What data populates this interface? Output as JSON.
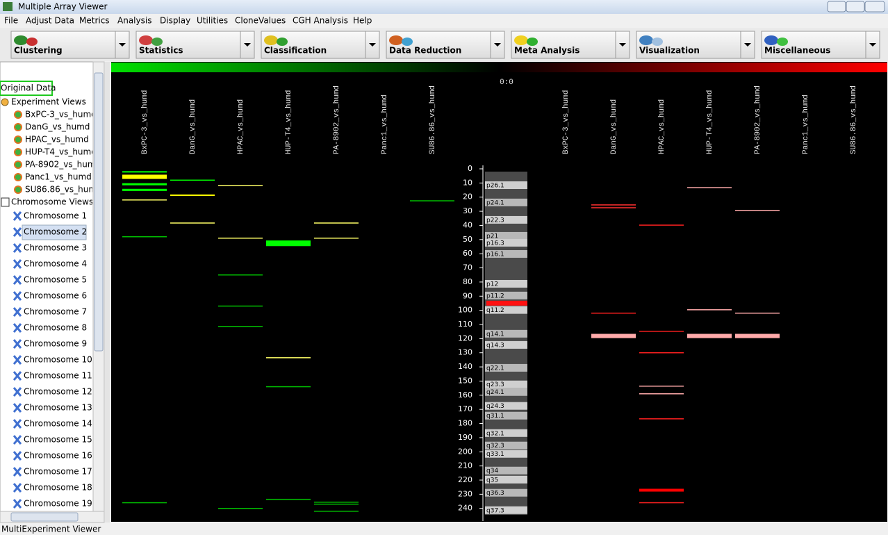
{
  "window": {
    "title": "Multiple Array Viewer",
    "status": "MultiExperiment Viewer"
  },
  "menu": [
    "File",
    "Adjust Data",
    "Metrics",
    "Analysis",
    "Display",
    "Utilities",
    "CloneValues",
    "CGH Analysis",
    "Help"
  ],
  "toolbar": [
    "Clustering",
    "Statistics",
    "Classification",
    "Data Reduction",
    "Meta Analysis",
    "Visualization",
    "Miscellaneous"
  ],
  "tree": {
    "root": "Original Data",
    "experiment_views": "Experiment Views",
    "chromosome_views": "Chromosome Views",
    "chromosomes": [
      "Chromosome 1",
      "Chromosome 2",
      "Chromosome 3",
      "Chromosome 4",
      "Chromosome 5",
      "Chromosome 6",
      "Chromosome 7",
      "Chromosome 8",
      "Chromosome 9",
      "Chromosome 10",
      "Chromosome 11",
      "Chromosome 12",
      "Chromosome 13",
      "Chromosome 14",
      "Chromosome 15",
      "Chromosome 16",
      "Chromosome 17",
      "Chromosome 18",
      "Chromosome 19"
    ],
    "selected": 1
  },
  "viewer": {
    "scale_label": "0:0",
    "columns": [
      "BxPC-3_vs_humd",
      "DanG_vs_humd",
      "HPAC_vs_humd",
      "HUP-T4_vs_humd",
      "PA-8902_vs_humd",
      "Panc1_vs_humd",
      "SU86.86_vs_humd"
    ],
    "ylim": [
      0,
      248
    ],
    "yticks": [
      0,
      10,
      20,
      30,
      40,
      50,
      60,
      70,
      80,
      90,
      100,
      110,
      120,
      130,
      140,
      150,
      160,
      170,
      180,
      190,
      200,
      210,
      220,
      230,
      240
    ],
    "left_tracks": [
      [
        {
          "start": 2,
          "end": 3,
          "color": "#00ff00"
        },
        {
          "start": 4.5,
          "end": 7.5,
          "color": "#ffff00"
        },
        {
          "start": 10.5,
          "end": 12,
          "color": "#00ff00"
        },
        {
          "start": 14.5,
          "end": 16,
          "color": "#00ff00"
        },
        {
          "start": 22,
          "end": 22,
          "color": "#ffff66"
        },
        {
          "start": 48,
          "end": 48,
          "color": "#00c000"
        },
        {
          "start": 236,
          "end": 236,
          "color": "#00c000"
        }
      ],
      [
        {
          "start": 8,
          "end": 8.5,
          "color": "#00ff00"
        },
        {
          "start": 18.5,
          "end": 19.5,
          "color": "#ffff00"
        },
        {
          "start": 38.3,
          "end": 38.3,
          "color": "#ffff66"
        }
      ],
      [
        {
          "start": 11.8,
          "end": 11.8,
          "color": "#ffff66"
        },
        {
          "start": 49,
          "end": 49,
          "color": "#ffff66"
        },
        {
          "start": 75,
          "end": 75,
          "color": "#00c000"
        },
        {
          "start": 97,
          "end": 97,
          "color": "#00c000"
        },
        {
          "start": 111.4,
          "end": 111.4,
          "color": "#00c000"
        },
        {
          "start": 240,
          "end": 240,
          "color": "#00c000"
        }
      ],
      [
        {
          "start": 51,
          "end": 55,
          "color": "#00ff00"
        },
        {
          "start": 133.5,
          "end": 133.5,
          "color": "#ffff66"
        },
        {
          "start": 154,
          "end": 154,
          "color": "#00c000"
        },
        {
          "start": 233.6,
          "end": 233.6,
          "color": "#00c000"
        }
      ],
      [
        {
          "start": 38.3,
          "end": 38.3,
          "color": "#ffff66"
        },
        {
          "start": 49,
          "end": 49,
          "color": "#ffff66"
        },
        {
          "start": 235.6,
          "end": 235.6,
          "color": "#00c000"
        },
        {
          "start": 237,
          "end": 237,
          "color": "#00c000"
        },
        {
          "start": 242,
          "end": 242,
          "color": "#00c000"
        }
      ],
      [],
      [
        {
          "start": 22.6,
          "end": 22.6,
          "color": "#00c000"
        }
      ]
    ],
    "right_tracks": [
      [],
      [
        {
          "start": 25.5,
          "end": 25.5,
          "color": "#ff3030"
        },
        {
          "start": 27.5,
          "end": 27.5,
          "color": "#ff3030"
        },
        {
          "start": 102,
          "end": 102.5,
          "color": "#ff2020"
        },
        {
          "start": 117,
          "end": 120,
          "color": "#ffaaaa"
        }
      ],
      [
        {
          "start": 39.8,
          "end": 39.8,
          "color": "#ff2020"
        },
        {
          "start": 114.8,
          "end": 114.8,
          "color": "#ff2020"
        },
        {
          "start": 130,
          "end": 130,
          "color": "#ff2020"
        },
        {
          "start": 153.6,
          "end": 153.6,
          "color": "#ffaaaa"
        },
        {
          "start": 159,
          "end": 159,
          "color": "#ffaaaa"
        },
        {
          "start": 176.7,
          "end": 176.7,
          "color": "#ff2020"
        },
        {
          "start": 226.5,
          "end": 228.5,
          "color": "#ff0000"
        },
        {
          "start": 236,
          "end": 236,
          "color": "#ff2020"
        }
      ],
      [
        {
          "start": 13.3,
          "end": 13.3,
          "color": "#ffaaaa"
        },
        {
          "start": 99.6,
          "end": 99.6,
          "color": "#ffaaaa"
        },
        {
          "start": 117,
          "end": 120,
          "color": "#ffaaaa"
        }
      ],
      [
        {
          "start": 29.4,
          "end": 29.4,
          "color": "#ffaaaa"
        },
        {
          "start": 102,
          "end": 102,
          "color": "#ffaaaa"
        },
        {
          "start": 117,
          "end": 120,
          "color": "#ffaaaa"
        }
      ],
      [],
      []
    ],
    "ideogram": {
      "centromere": 94.7,
      "bands": [
        {
          "label": "p26.1",
          "pos": 11.8
        },
        {
          "label": "p24.1",
          "pos": 24
        },
        {
          "label": "p22.3",
          "pos": 36.3
        },
        {
          "label": "p21",
          "pos": 47.6
        },
        {
          "label": "p16.3",
          "pos": 52.5
        },
        {
          "label": "p16.1",
          "pos": 60.4
        },
        {
          "label": "p12",
          "pos": 81.5
        },
        {
          "label": "p11.2",
          "pos": 89.8
        },
        {
          "label": "q11.2",
          "pos": 100
        },
        {
          "label": "q14.1",
          "pos": 116.8
        },
        {
          "label": "q14.3",
          "pos": 124.7
        },
        {
          "label": "q22.1",
          "pos": 140.9
        },
        {
          "label": "q23.3",
          "pos": 152.6
        },
        {
          "label": "q24.1",
          "pos": 158
        },
        {
          "label": "q24.3",
          "pos": 167.8
        },
        {
          "label": "q31.1",
          "pos": 174.7
        },
        {
          "label": "q32.1",
          "pos": 187
        },
        {
          "label": "q32.3",
          "pos": 195.8
        },
        {
          "label": "q33.1",
          "pos": 201.7
        },
        {
          "label": "q34",
          "pos": 213.5
        },
        {
          "label": "q35",
          "pos": 219.9
        },
        {
          "label": "q36.3",
          "pos": 229.2
        },
        {
          "label": "q37.3",
          "pos": 241.5
        }
      ]
    }
  }
}
